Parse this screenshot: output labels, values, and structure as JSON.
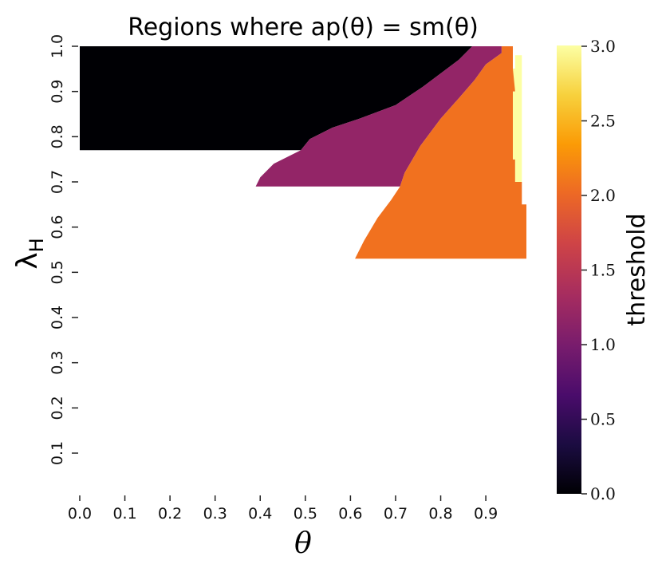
{
  "chart_data": {
    "type": "heatmap",
    "title": "Regions where ap(θ) = sm(θ)",
    "xlabel": "θ",
    "ylabel": "λ",
    "ylabel_subscript": "H",
    "x_range": [
      0.0,
      0.99
    ],
    "y_range": [
      0.01,
      1.0
    ],
    "x_ticks": [
      "0.0",
      "0.1",
      "0.2",
      "0.3",
      "0.4",
      "0.5",
      "0.6",
      "0.7",
      "0.8",
      "0.9"
    ],
    "y_ticks": [
      "0.1",
      "0.2",
      "0.3",
      "0.4",
      "0.5",
      "0.6",
      "0.7",
      "0.8",
      "0.9",
      "1.0"
    ],
    "colorbar": {
      "label": "threshold",
      "range": [
        0.0,
        3.0
      ],
      "ticks": [
        "0.0",
        "0.5",
        "1.0",
        "1.5",
        "2.0",
        "2.5",
        "3.0"
      ],
      "colormap": "inferno"
    },
    "regions": [
      {
        "value": 0.0,
        "color": "#000004",
        "description": "lambda_H from 0.77 to 1.0",
        "polygon": [
          [
            0.0,
            0.77
          ],
          [
            0.0,
            1.0
          ],
          [
            0.87,
            1.0
          ],
          [
            0.84,
            0.97
          ],
          [
            0.76,
            0.91
          ],
          [
            0.7,
            0.87
          ],
          [
            0.62,
            0.84
          ],
          [
            0.56,
            0.82
          ],
          [
            0.51,
            0.795
          ],
          [
            0.49,
            0.77
          ]
        ]
      },
      {
        "value": 1.0,
        "color": "#932567",
        "description": "lambda_H from 0.69 to 1.0",
        "polygon": [
          [
            0.87,
            1.0
          ],
          [
            0.84,
            0.97
          ],
          [
            0.76,
            0.91
          ],
          [
            0.7,
            0.87
          ],
          [
            0.62,
            0.84
          ],
          [
            0.56,
            0.82
          ],
          [
            0.51,
            0.795
          ],
          [
            0.49,
            0.77
          ],
          [
            0.43,
            0.74
          ],
          [
            0.4,
            0.71
          ],
          [
            0.39,
            0.69
          ],
          [
            0.71,
            0.69
          ],
          [
            0.72,
            0.72
          ],
          [
            0.755,
            0.78
          ],
          [
            0.8,
            0.84
          ],
          [
            0.84,
            0.885
          ],
          [
            0.875,
            0.925
          ],
          [
            0.9,
            0.96
          ],
          [
            0.935,
            0.985
          ],
          [
            0.935,
            1.0
          ]
        ]
      },
      {
        "value": 2.0,
        "color": "#f1711f",
        "description": "lambda_H from 0.53 to 1.0",
        "polygon": [
          [
            0.935,
            1.0
          ],
          [
            0.935,
            0.985
          ],
          [
            0.9,
            0.96
          ],
          [
            0.875,
            0.925
          ],
          [
            0.84,
            0.885
          ],
          [
            0.8,
            0.84
          ],
          [
            0.755,
            0.78
          ],
          [
            0.72,
            0.72
          ],
          [
            0.71,
            0.69
          ],
          [
            0.69,
            0.66
          ],
          [
            0.66,
            0.62
          ],
          [
            0.63,
            0.57
          ],
          [
            0.61,
            0.53
          ],
          [
            0.99,
            0.53
          ],
          [
            0.99,
            0.65
          ],
          [
            0.98,
            0.65
          ],
          [
            0.98,
            0.7
          ],
          [
            0.965,
            0.7
          ],
          [
            0.965,
            0.75
          ],
          [
            0.96,
            0.75
          ],
          [
            0.96,
            0.9
          ],
          [
            0.965,
            0.9
          ],
          [
            0.965,
            0.95
          ],
          [
            0.96,
            0.95
          ],
          [
            0.96,
            1.0
          ]
        ]
      },
      {
        "value": 3.0,
        "color": "#fcffa4",
        "description": "lambda_H from 0.65 to 0.98",
        "polygon": [
          [
            0.96,
            0.95
          ],
          [
            0.965,
            0.95
          ],
          [
            0.965,
            0.98
          ],
          [
            0.98,
            0.98
          ],
          [
            0.98,
            0.65
          ],
          [
            0.98,
            0.65
          ],
          [
            0.98,
            0.7
          ],
          [
            0.965,
            0.7
          ],
          [
            0.965,
            0.75
          ],
          [
            0.96,
            0.75
          ],
          [
            0.96,
            0.9
          ],
          [
            0.965,
            0.9
          ]
        ]
      }
    ],
    "colors": {
      "background": "#ffffff",
      "colormap_stops": [
        "#000004",
        "#1b0c41",
        "#4a0c6b",
        "#781c6d",
        "#a52c60",
        "#cf4446",
        "#ed6925",
        "#fb9b06",
        "#f7d13d",
        "#fcffa4"
      ]
    }
  }
}
